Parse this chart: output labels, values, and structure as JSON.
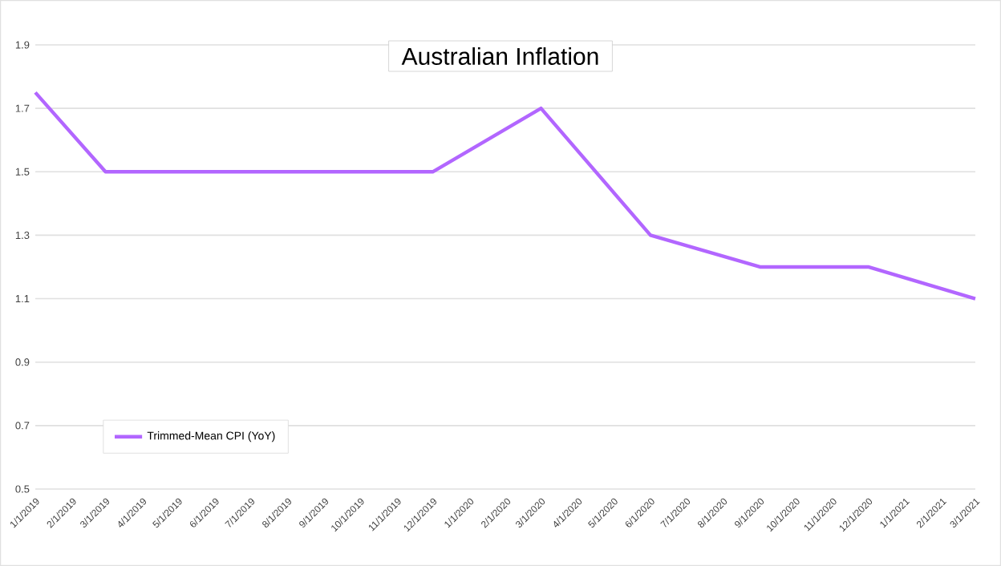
{
  "chart_data": {
    "type": "line",
    "title": "Australian Inflation",
    "x": [
      "2019-01-01",
      "2019-03-01",
      "2019-06-01",
      "2019-09-01",
      "2019-12-01",
      "2020-03-01",
      "2020-06-01",
      "2020-09-01",
      "2020-12-01",
      "2021-03-01"
    ],
    "series": [
      {
        "name": "Trimmed-Mean CPI (YoY)",
        "color": "#b266ff",
        "values": [
          1.75,
          1.5,
          1.5,
          1.5,
          1.5,
          1.7,
          1.3,
          1.2,
          1.2,
          1.1
        ]
      }
    ],
    "xlim": [
      "2019-01-01",
      "2021-03-01"
    ],
    "xticks": [
      {
        "value": "2019-01-01",
        "label": "1/1/2019"
      },
      {
        "value": "2019-02-01",
        "label": "2/1/2019"
      },
      {
        "value": "2019-03-01",
        "label": "3/1/2019"
      },
      {
        "value": "2019-04-01",
        "label": "4/1/2019"
      },
      {
        "value": "2019-05-01",
        "label": "5/1/2019"
      },
      {
        "value": "2019-06-01",
        "label": "6/1/2019"
      },
      {
        "value": "2019-07-01",
        "label": "7/1/2019"
      },
      {
        "value": "2019-08-01",
        "label": "8/1/2019"
      },
      {
        "value": "2019-09-01",
        "label": "9/1/2019"
      },
      {
        "value": "2019-10-01",
        "label": "10/1/2019"
      },
      {
        "value": "2019-11-01",
        "label": "11/1/2019"
      },
      {
        "value": "2019-12-01",
        "label": "12/1/2019"
      },
      {
        "value": "2020-01-01",
        "label": "1/1/2020"
      },
      {
        "value": "2020-02-01",
        "label": "2/1/2020"
      },
      {
        "value": "2020-03-01",
        "label": "3/1/2020"
      },
      {
        "value": "2020-04-01",
        "label": "4/1/2020"
      },
      {
        "value": "2020-05-01",
        "label": "5/1/2020"
      },
      {
        "value": "2020-06-01",
        "label": "6/1/2020"
      },
      {
        "value": "2020-07-01",
        "label": "7/1/2020"
      },
      {
        "value": "2020-08-01",
        "label": "8/1/2020"
      },
      {
        "value": "2020-09-01",
        "label": "9/1/2020"
      },
      {
        "value": "2020-10-01",
        "label": "10/1/2020"
      },
      {
        "value": "2020-11-01",
        "label": "11/1/2020"
      },
      {
        "value": "2020-12-01",
        "label": "12/1/2020"
      },
      {
        "value": "2021-01-01",
        "label": "1/1/2021"
      },
      {
        "value": "2021-02-01",
        "label": "2/1/2021"
      },
      {
        "value": "2021-03-01",
        "label": "3/1/2021"
      }
    ],
    "ylim": [
      0.5,
      1.9
    ],
    "yticks": [
      0.5,
      0.7,
      0.9,
      1.1,
      1.3,
      1.5,
      1.7,
      1.9
    ],
    "grid": "y",
    "legend": "bottom left",
    "marker": "none",
    "line_style": "solid"
  }
}
